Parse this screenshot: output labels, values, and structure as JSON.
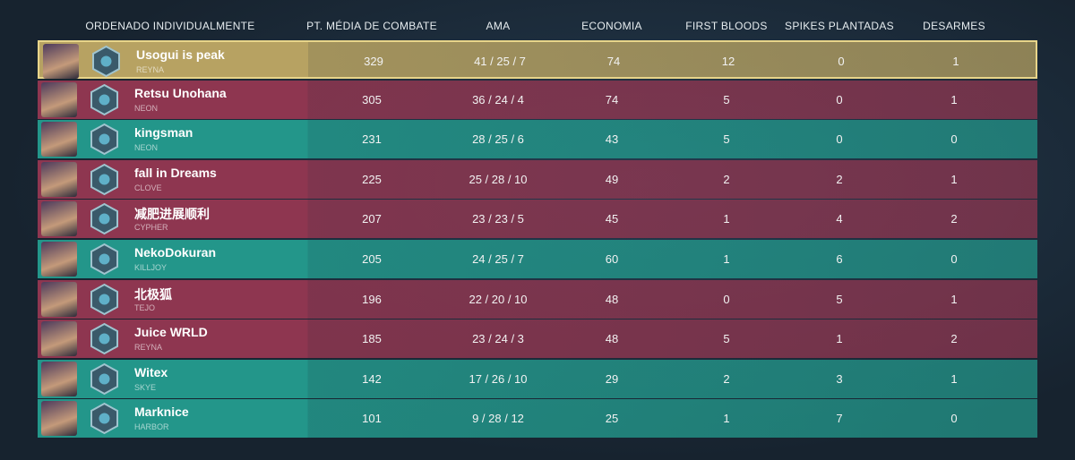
{
  "header": [
    "ORDENADO INDIVIDUALMENTE",
    "PT. MÉDIA DE COMBATE",
    "AMA",
    "ECONOMIA",
    "FIRST BLOODS",
    "SPIKES PLANTADAS",
    "DESARMES"
  ],
  "rows": [
    {
      "name": "Usogui is peak",
      "agent": "REYNA",
      "acs": 329,
      "kda": "41 / 25 / 7",
      "economy": 74,
      "first_bloods": 12,
      "plants": 0,
      "defuses": 1,
      "color": "#b7a262"
    },
    {
      "name": "Retsu Unohana",
      "agent": "NEON",
      "acs": 305,
      "kda": "36 / 24 / 4",
      "economy": 74,
      "first_bloods": 5,
      "plants": 0,
      "defuses": 1,
      "color": "#8e3650"
    },
    {
      "name": "kingsman",
      "agent": "NEON",
      "acs": 231,
      "kda": "28 / 25 / 6",
      "economy": 43,
      "first_bloods": 5,
      "plants": 0,
      "defuses": 0,
      "color": "#23968a"
    },
    {
      "name": "fall in Dreams",
      "agent": "CLOVE",
      "acs": 225,
      "kda": "25 / 28 / 10",
      "economy": 49,
      "first_bloods": 2,
      "plants": 2,
      "defuses": 1,
      "color": "#8e3650"
    },
    {
      "name": "减肥进展顺利",
      "agent": "CYPHER",
      "acs": 207,
      "kda": "23 / 23 / 5",
      "economy": 45,
      "first_bloods": 1,
      "plants": 4,
      "defuses": 2,
      "color": "#8e3650"
    },
    {
      "name": "NekoDokuran",
      "agent": "KILLJOY",
      "acs": 205,
      "kda": "24 / 25 / 7",
      "economy": 60,
      "first_bloods": 1,
      "plants": 6,
      "defuses": 0,
      "color": "#23968a"
    },
    {
      "name": "北极狐",
      "agent": "TEJO",
      "acs": 196,
      "kda": "22 / 20 / 10",
      "economy": 48,
      "first_bloods": 0,
      "plants": 5,
      "defuses": 1,
      "color": "#8e3650"
    },
    {
      "name": "Juice WRLD",
      "agent": "REYNA",
      "acs": 185,
      "kda": "23 / 24 / 3",
      "economy": 48,
      "first_bloods": 5,
      "plants": 1,
      "defuses": 2,
      "color": "#8e3650"
    },
    {
      "name": "Witex",
      "agent": "SKYE",
      "acs": 142,
      "kda": "17 / 26 / 10",
      "economy": 29,
      "first_bloods": 2,
      "plants": 3,
      "defuses": 1,
      "color": "#23968a"
    },
    {
      "name": "Marknice",
      "agent": "HARBOR",
      "acs": 101,
      "kda": "9 / 28 / 12",
      "economy": 25,
      "first_bloods": 1,
      "plants": 7,
      "defuses": 0,
      "color": "#23968a"
    }
  ]
}
